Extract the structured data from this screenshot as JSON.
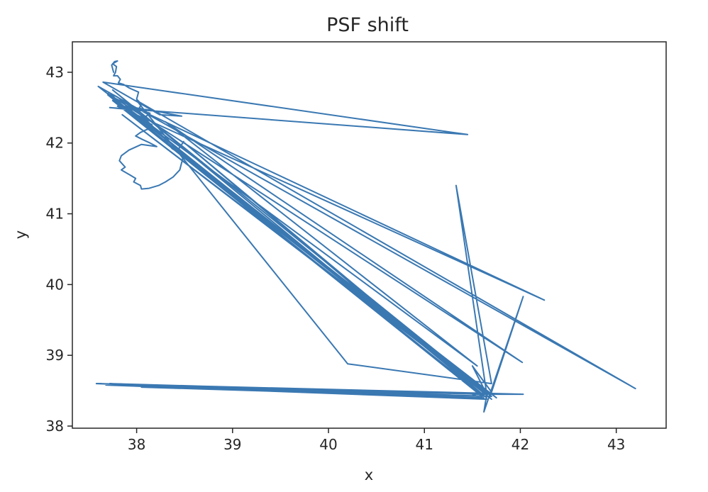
{
  "chart_data": {
    "type": "line",
    "title": "PSF shift",
    "xlabel": "x",
    "ylabel": "y",
    "xlim": [
      37.33,
      43.52
    ],
    "ylim": [
      37.97,
      43.43
    ],
    "xticks": [
      38,
      39,
      40,
      41,
      42,
      43
    ],
    "yticks": [
      38,
      39,
      40,
      41,
      42,
      43
    ],
    "grid": false,
    "legend": "none",
    "series_color": "#3a78b2",
    "series": [
      {
        "x": [
          37.76,
          37.74,
          37.77,
          37.8,
          37.75,
          37.79,
          37.78,
          37.76,
          37.8,
          37.83,
          37.81,
          37.86,
          37.92,
          37.97,
          38.02,
          38.0,
          38.05,
          38.03,
          38.08,
          38.14,
          38.07,
          38.1,
          38.16,
          38.12,
          38.04,
          37.99,
          38.06,
          38.14,
          38.21,
          38.05,
          37.92,
          37.84,
          37.82,
          37.88,
          37.84,
          37.93,
          37.99,
          37.97,
          38.04,
          38.05,
          38.13,
          38.18,
          38.23,
          38.3,
          38.38,
          38.45,
          38.48,
          38.44,
          38.49,
          38.42,
          38.37,
          38.27,
          38.12,
          38.0,
          37.9,
          37.8,
          37.73,
          37.85,
          37.98,
          38.2,
          38.47,
          38.24,
          37.65,
          41.45,
          37.72,
          38.1,
          37.8,
          42.25,
          37.7,
          41.6,
          37.75,
          41.75,
          37.8,
          41.65,
          37.85,
          41.7,
          37.7,
          42.02,
          38.3,
          41.55,
          37.9,
          41.7,
          38.5,
          41.65,
          37.75,
          41.68,
          37.6,
          43.2,
          38.0,
          40.2,
          41.7,
          41.33,
          41.65,
          41.5,
          41.7,
          42.03,
          41.62,
          41.65,
          37.78,
          41.62,
          37.72,
          37.98,
          37.58,
          41.7,
          38.05,
          41.62,
          38.47,
          41.65,
          37.68,
          41.72,
          37.6,
          42.03,
          41.5,
          41.58,
          41.65,
          37.8,
          41.6
        ],
        "y": [
          43.0,
          43.1,
          43.15,
          43.16,
          43.12,
          43.08,
          43.0,
          42.95,
          42.95,
          42.9,
          42.85,
          42.83,
          42.78,
          42.75,
          42.72,
          42.62,
          42.55,
          42.5,
          42.45,
          42.42,
          42.35,
          42.3,
          42.26,
          42.2,
          42.15,
          42.1,
          42.05,
          42.0,
          41.95,
          41.98,
          41.9,
          41.82,
          41.75,
          41.66,
          41.62,
          41.55,
          41.5,
          41.45,
          41.4,
          41.35,
          41.36,
          41.38,
          41.4,
          41.45,
          41.52,
          41.62,
          41.78,
          41.92,
          42.02,
          41.88,
          41.92,
          42.1,
          42.3,
          42.45,
          42.55,
          42.65,
          42.7,
          42.52,
          42.5,
          42.45,
          42.38,
          42.4,
          42.86,
          42.12,
          42.5,
          42.45,
          42.52,
          39.78,
          42.68,
          38.42,
          42.6,
          38.4,
          42.55,
          38.45,
          42.4,
          38.42,
          42.7,
          38.9,
          42.3,
          38.85,
          42.5,
          38.38,
          42.0,
          38.4,
          42.75,
          38.45,
          42.8,
          38.53,
          42.6,
          38.88,
          38.6,
          41.4,
          38.45,
          38.85,
          38.48,
          39.83,
          38.2,
          38.45,
          38.58,
          38.45,
          38.6,
          38.58,
          38.6,
          38.42,
          38.55,
          38.4,
          38.55,
          38.38,
          38.58,
          38.45,
          38.6,
          38.45,
          38.45,
          38.4,
          38.48,
          42.55,
          38.44
        ]
      }
    ]
  }
}
